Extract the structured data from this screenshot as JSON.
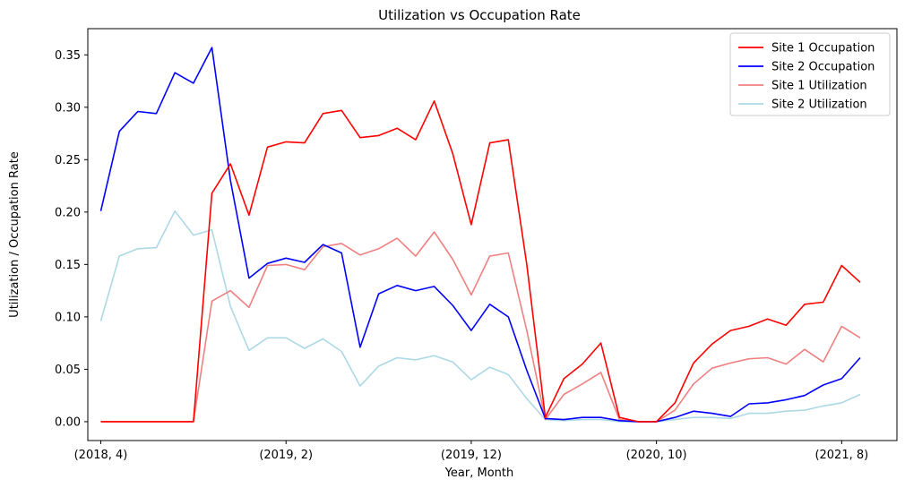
{
  "chart_data": {
    "type": "line",
    "title": "Utilization vs Occupation Rate",
    "xlabel": "Year, Month",
    "ylabel": "Utilization / Occupation Rate",
    "ylim": [
      -0.018,
      0.375
    ],
    "yticks": [
      0.0,
      0.05,
      0.1,
      0.15,
      0.2,
      0.25,
      0.3,
      0.35
    ],
    "x": [
      "(2018, 4)",
      "(2018, 5)",
      "(2018, 6)",
      "(2018, 7)",
      "(2018, 8)",
      "(2018, 9)",
      "(2018, 10)",
      "(2018, 11)",
      "(2018, 12)",
      "(2019, 1)",
      "(2019, 2)",
      "(2019, 3)",
      "(2019, 4)",
      "(2019, 5)",
      "(2019, 6)",
      "(2019, 7)",
      "(2019, 8)",
      "(2019, 9)",
      "(2019, 10)",
      "(2019, 11)",
      "(2019, 12)",
      "(2020, 1)",
      "(2020, 2)",
      "(2020, 3)",
      "(2020, 4)",
      "(2020, 5)",
      "(2020, 6)",
      "(2020, 7)",
      "(2020, 8)",
      "(2020, 9)",
      "(2020, 10)",
      "(2020, 11)",
      "(2020, 12)",
      "(2021, 1)",
      "(2021, 2)",
      "(2021, 3)",
      "(2021, 4)",
      "(2021, 5)",
      "(2021, 6)",
      "(2021, 7)",
      "(2021, 8)",
      "(2021, 9)"
    ],
    "xticks": [
      "(2018, 4)",
      "(2019, 2)",
      "(2019, 12)",
      "(2020, 10)",
      "(2021, 8)"
    ],
    "legend": "top-right",
    "grid": false,
    "series": [
      {
        "name": "Site 1 Occupation",
        "color": "#ff0000",
        "values": [
          0.0,
          0.0,
          0.0,
          0.0,
          0.0,
          0.0,
          0.218,
          0.246,
          0.197,
          0.262,
          0.267,
          0.266,
          0.294,
          0.297,
          0.271,
          0.273,
          0.28,
          0.269,
          0.306,
          0.256,
          0.188,
          0.266,
          0.269,
          0.15,
          0.004,
          0.041,
          0.055,
          0.075,
          0.004,
          0.0,
          0.0,
          0.018,
          0.056,
          0.074,
          0.087,
          0.091,
          0.098,
          0.092,
          0.112,
          0.114,
          0.149,
          0.133
        ]
      },
      {
        "name": "Site 2 Occupation",
        "color": "#0000ff",
        "values": [
          0.201,
          0.277,
          0.296,
          0.294,
          0.333,
          0.323,
          0.357,
          0.23,
          0.137,
          0.151,
          0.156,
          0.152,
          0.169,
          0.161,
          0.071,
          0.122,
          0.13,
          0.125,
          0.129,
          0.111,
          0.087,
          0.112,
          0.1,
          0.049,
          0.003,
          0.002,
          0.004,
          0.004,
          0.001,
          0.0,
          0.0,
          0.004,
          0.01,
          0.008,
          0.005,
          0.017,
          0.018,
          0.021,
          0.025,
          0.035,
          0.041,
          0.061
        ]
      },
      {
        "name": "Site 1 Utilization",
        "color": "#f08080",
        "values": [
          0.0,
          0.0,
          0.0,
          0.0,
          0.0,
          0.0,
          0.115,
          0.125,
          0.109,
          0.149,
          0.15,
          0.145,
          0.167,
          0.17,
          0.159,
          0.165,
          0.175,
          0.158,
          0.181,
          0.155,
          0.121,
          0.158,
          0.161,
          0.087,
          0.002,
          0.026,
          0.036,
          0.047,
          0.002,
          0.0,
          0.0,
          0.011,
          0.036,
          0.051,
          0.056,
          0.06,
          0.061,
          0.055,
          0.069,
          0.057,
          0.091,
          0.08
        ]
      },
      {
        "name": "Site 2 Utilization",
        "color": "#add8e6",
        "values": [
          0.096,
          0.158,
          0.165,
          0.166,
          0.201,
          0.178,
          0.183,
          0.11,
          0.068,
          0.08,
          0.08,
          0.07,
          0.079,
          0.067,
          0.034,
          0.053,
          0.061,
          0.059,
          0.063,
          0.057,
          0.04,
          0.052,
          0.045,
          0.022,
          0.002,
          0.001,
          0.002,
          0.002,
          0.0,
          0.0,
          0.0,
          0.002,
          0.004,
          0.004,
          0.003,
          0.008,
          0.008,
          0.01,
          0.011,
          0.015,
          0.018,
          0.026
        ]
      }
    ]
  }
}
